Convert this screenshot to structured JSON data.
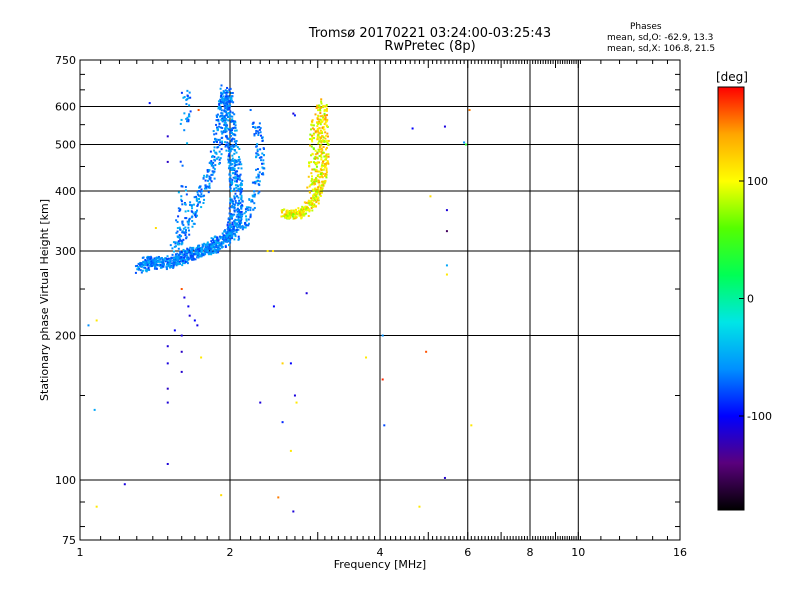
{
  "title_line1": "Tromsø 20170221 03:24:00-03:25:43",
  "title_line2": "RwPretec (8p)",
  "stats": {
    "header": "Phases",
    "line0": "mean, sd,O: -62.9, 13.3",
    "lineX": "mean, sd,X: 106.8, 21.5"
  },
  "colorbar": {
    "unit": "[deg]",
    "ticks": [
      "100",
      "0",
      "-100"
    ],
    "tick_values": [
      100,
      0,
      -100
    ],
    "range": [
      -180,
      180
    ],
    "colors": [
      "#000000",
      "#5a007d",
      "#0000ff",
      "#0090ff",
      "#00e6e6",
      "#00ff55",
      "#55ff00",
      "#ffff00",
      "#ffa500",
      "#ff0000"
    ]
  },
  "chart_data": {
    "type": "scatter",
    "title": "Tromsø 20170221 03:24:00-03:25:43",
    "subtitle": "RwPretec (8p)",
    "xlabel": "Frequency [MHz]",
    "ylabel": "Stationary phase Virtual Height [km]",
    "x_scale": "log",
    "y_scale": "log",
    "xlim": [
      1,
      16
    ],
    "ylim": [
      75,
      750
    ],
    "x_ticks": [
      1,
      2,
      4,
      6,
      8,
      10,
      16
    ],
    "x_tick_labels": [
      "1",
      "2",
      "4",
      "6",
      "8",
      "10",
      "16"
    ],
    "y_ticks": [
      75,
      100,
      200,
      300,
      400,
      500,
      600,
      750
    ],
    "y_tick_labels": [
      "75",
      "100",
      "200",
      "300",
      "400",
      "500",
      "600",
      "750"
    ],
    "grid": true,
    "color_label": "Phase [deg]",
    "o_trace": [
      {
        "f": 1.32,
        "h": 275
      },
      {
        "f": 1.36,
        "h": 282
      },
      {
        "f": 1.4,
        "h": 287
      },
      {
        "f": 1.45,
        "h": 281
      },
      {
        "f": 1.5,
        "h": 284
      },
      {
        "f": 1.55,
        "h": 286
      },
      {
        "f": 1.6,
        "h": 290
      },
      {
        "f": 1.65,
        "h": 294
      },
      {
        "f": 1.7,
        "h": 297
      },
      {
        "f": 1.75,
        "h": 300
      },
      {
        "f": 1.8,
        "h": 303
      },
      {
        "f": 1.85,
        "h": 307
      },
      {
        "f": 1.9,
        "h": 312
      },
      {
        "f": 1.95,
        "h": 318
      },
      {
        "f": 2.0,
        "h": 325
      },
      {
        "f": 2.03,
        "h": 335
      },
      {
        "f": 2.05,
        "h": 350
      },
      {
        "f": 2.06,
        "h": 370
      },
      {
        "f": 2.06,
        "h": 400
      },
      {
        "f": 2.05,
        "h": 430
      },
      {
        "f": 2.04,
        "h": 460
      },
      {
        "f": 2.02,
        "h": 500
      },
      {
        "f": 2.0,
        "h": 540
      },
      {
        "f": 1.98,
        "h": 580
      },
      {
        "f": 1.97,
        "h": 620
      },
      {
        "f": 1.96,
        "h": 650
      }
    ],
    "o_trace_inner": [
      {
        "f": 1.55,
        "h": 300
      },
      {
        "f": 1.6,
        "h": 320
      },
      {
        "f": 1.65,
        "h": 345
      },
      {
        "f": 1.7,
        "h": 370
      },
      {
        "f": 1.75,
        "h": 395
      },
      {
        "f": 1.8,
        "h": 420
      },
      {
        "f": 1.85,
        "h": 450
      },
      {
        "f": 1.88,
        "h": 480
      },
      {
        "f": 1.9,
        "h": 520
      },
      {
        "f": 1.92,
        "h": 560
      },
      {
        "f": 1.94,
        "h": 600
      },
      {
        "f": 1.95,
        "h": 640
      }
    ],
    "o_trace_outer": [
      {
        "f": 2.1,
        "h": 320
      },
      {
        "f": 2.15,
        "h": 345
      },
      {
        "f": 2.2,
        "h": 370
      },
      {
        "f": 2.25,
        "h": 400
      },
      {
        "f": 2.3,
        "h": 440
      },
      {
        "f": 2.3,
        "h": 480
      },
      {
        "f": 2.28,
        "h": 520
      },
      {
        "f": 2.25,
        "h": 560
      }
    ],
    "o_branch_early": [
      {
        "f": 1.62,
        "h": 560
      },
      {
        "f": 1.64,
        "h": 600
      },
      {
        "f": 1.63,
        "h": 640
      },
      {
        "f": 1.6,
        "h": 410
      },
      {
        "f": 1.62,
        "h": 380
      },
      {
        "f": 1.58,
        "h": 350
      },
      {
        "f": 1.6,
        "h": 320
      }
    ],
    "x_trace": [
      {
        "f": 2.55,
        "h": 360
      },
      {
        "f": 2.62,
        "h": 358
      },
      {
        "f": 2.7,
        "h": 357
      },
      {
        "f": 2.78,
        "h": 360
      },
      {
        "f": 2.85,
        "h": 365
      },
      {
        "f": 2.92,
        "h": 375
      },
      {
        "f": 2.98,
        "h": 388
      },
      {
        "f": 3.02,
        "h": 405
      },
      {
        "f": 3.05,
        "h": 425
      },
      {
        "f": 3.07,
        "h": 450
      },
      {
        "f": 3.08,
        "h": 480
      },
      {
        "f": 3.08,
        "h": 510
      },
      {
        "f": 3.07,
        "h": 545
      },
      {
        "f": 3.06,
        "h": 580
      },
      {
        "f": 3.05,
        "h": 610
      }
    ],
    "x_trace_inner": [
      {
        "f": 2.9,
        "h": 400
      },
      {
        "f": 2.92,
        "h": 430
      },
      {
        "f": 2.94,
        "h": 460
      },
      {
        "f": 2.95,
        "h": 500
      },
      {
        "f": 2.96,
        "h": 540
      },
      {
        "f": 2.97,
        "h": 580
      }
    ],
    "scattered_points": [
      {
        "f": 1.38,
        "h": 610,
        "p": -95
      },
      {
        "f": 1.5,
        "h": 520,
        "p": -115
      },
      {
        "f": 1.5,
        "h": 460,
        "p": -118
      },
      {
        "f": 1.6,
        "h": 250,
        "p": 160
      },
      {
        "f": 1.62,
        "h": 240,
        "p": -110
      },
      {
        "f": 1.65,
        "h": 230,
        "p": -105
      },
      {
        "f": 1.66,
        "h": 220,
        "p": -112
      },
      {
        "f": 1.7,
        "h": 215,
        "p": -100
      },
      {
        "f": 1.72,
        "h": 210,
        "p": -108
      },
      {
        "f": 1.6,
        "h": 200,
        "p": -110
      },
      {
        "f": 1.55,
        "h": 205,
        "p": -100
      },
      {
        "f": 1.5,
        "h": 190,
        "p": -112
      },
      {
        "f": 1.6,
        "h": 185,
        "p": -118
      },
      {
        "f": 1.5,
        "h": 175,
        "p": -110
      },
      {
        "f": 1.6,
        "h": 168,
        "p": -115
      },
      {
        "f": 1.5,
        "h": 155,
        "p": -118
      },
      {
        "f": 1.5,
        "h": 145,
        "p": -112
      },
      {
        "f": 1.75,
        "h": 180,
        "p": 110
      },
      {
        "f": 1.5,
        "h": 108,
        "p": -112
      },
      {
        "f": 1.23,
        "h": 98,
        "p": -110
      },
      {
        "f": 1.08,
        "h": 215,
        "p": 110
      },
      {
        "f": 1.04,
        "h": 210,
        "p": -60
      },
      {
        "f": 1.07,
        "h": 140,
        "p": -50
      },
      {
        "f": 1.08,
        "h": 88,
        "p": 110
      },
      {
        "f": 1.42,
        "h": 335,
        "p": 115
      },
      {
        "f": 1.92,
        "h": 93,
        "p": 115
      },
      {
        "f": 2.3,
        "h": 145,
        "p": -112
      },
      {
        "f": 2.5,
        "h": 92,
        "p": 150
      },
      {
        "f": 2.45,
        "h": 230,
        "p": -100
      },
      {
        "f": 2.55,
        "h": 132,
        "p": -90
      },
      {
        "f": 2.55,
        "h": 175,
        "p": 120
      },
      {
        "f": 2.65,
        "h": 175,
        "p": -100
      },
      {
        "f": 2.7,
        "h": 150,
        "p": -110
      },
      {
        "f": 2.72,
        "h": 145,
        "p": 110
      },
      {
        "f": 2.65,
        "h": 115,
        "p": 110
      },
      {
        "f": 2.68,
        "h": 86,
        "p": -112
      },
      {
        "f": 2.85,
        "h": 245,
        "p": -112
      },
      {
        "f": 2.7,
        "h": 575,
        "p": -90
      },
      {
        "f": 2.68,
        "h": 580,
        "p": -112
      },
      {
        "f": 2.38,
        "h": 300,
        "p": 110
      },
      {
        "f": 2.44,
        "h": 300,
        "p": 115
      },
      {
        "f": 3.75,
        "h": 180,
        "p": 110
      },
      {
        "f": 4.05,
        "h": 162,
        "p": 170
      },
      {
        "f": 4.08,
        "h": 130,
        "p": -80
      },
      {
        "f": 4.05,
        "h": 200,
        "p": -60
      },
      {
        "f": 4.65,
        "h": 540,
        "p": -100
      },
      {
        "f": 4.95,
        "h": 185,
        "p": 160
      },
      {
        "f": 5.05,
        "h": 390,
        "p": 115
      },
      {
        "f": 4.8,
        "h": 88,
        "p": 110
      },
      {
        "f": 5.4,
        "h": 545,
        "p": -110
      },
      {
        "f": 5.45,
        "h": 365,
        "p": -112
      },
      {
        "f": 5.45,
        "h": 330,
        "p": -150
      },
      {
        "f": 5.45,
        "h": 280,
        "p": -50
      },
      {
        "f": 5.45,
        "h": 268,
        "p": 110
      },
      {
        "f": 5.4,
        "h": 101,
        "p": -115
      },
      {
        "f": 5.9,
        "h": 505,
        "p": -60
      },
      {
        "f": 5.95,
        "h": 500,
        "p": 40
      },
      {
        "f": 6.05,
        "h": 590,
        "p": 150
      },
      {
        "f": 6.1,
        "h": 130,
        "p": 110
      },
      {
        "f": 2.0,
        "h": 615,
        "p": -80
      },
      {
        "f": 2.2,
        "h": 590,
        "p": -70
      },
      {
        "f": 1.73,
        "h": 590,
        "p": 160
      }
    ],
    "series_phase_summary": {
      "O": {
        "mean": -62.9,
        "sd": 13.3
      },
      "X": {
        "mean": 106.8,
        "sd": 21.5
      }
    }
  }
}
